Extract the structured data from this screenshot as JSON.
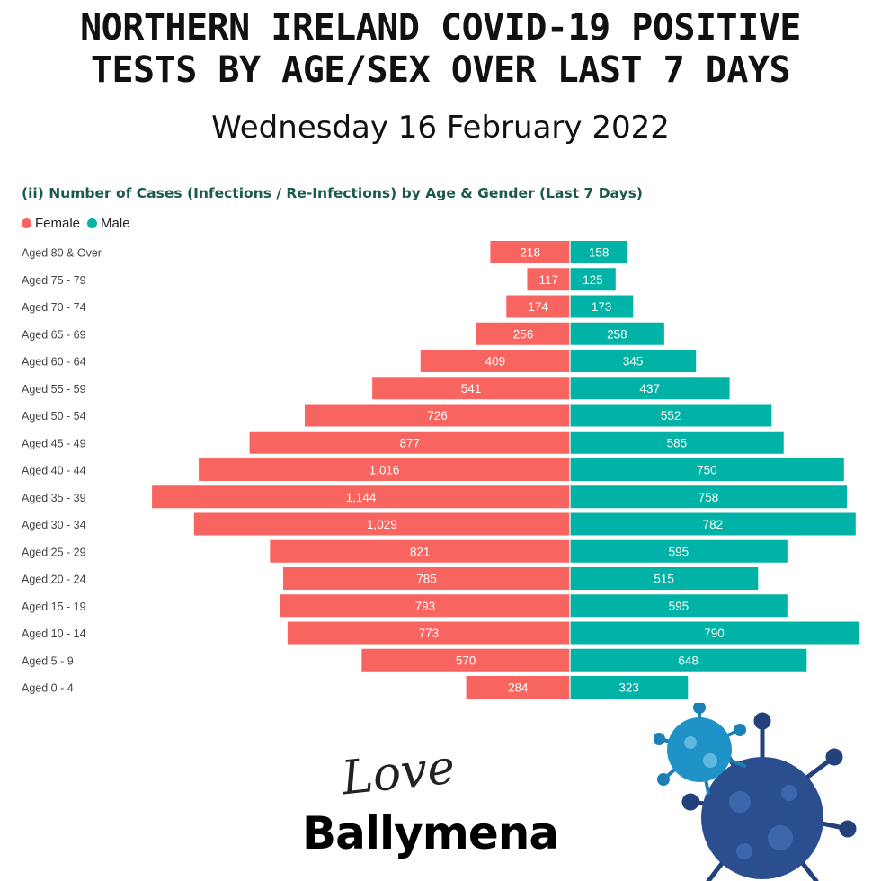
{
  "header": {
    "title": "NORTHERN IRELAND COVID-19 POSITIVE\nTESTS BY AGE/SEX OVER LAST 7 DAYS",
    "date": "Wednesday 16 February 2022"
  },
  "brand": {
    "script_word": "Love",
    "name": "Ballymena"
  },
  "colors": {
    "female": "#f8645f",
    "male": "#00b3a6"
  },
  "icons": [
    "virus-illustration"
  ],
  "chart_data": {
    "type": "bar",
    "orientation": "horizontal-diverging",
    "title": "(ii) Number of Cases (Infections / Re-Infections) by Age & Gender (Last 7 Days)",
    "legend_position": "top-left",
    "grid": false,
    "categories": [
      "Aged 80 & Over",
      "Aged 75 - 79",
      "Aged 70 - 74",
      "Aged 65 - 69",
      "Aged 60 - 64",
      "Aged 55 - 59",
      "Aged 50 - 54",
      "Aged 45 - 49",
      "Aged 40 - 44",
      "Aged 35 - 39",
      "Aged 30 - 34",
      "Aged 25 - 29",
      "Aged 20 - 24",
      "Aged 15 - 19",
      "Aged 10 - 14",
      "Aged 5 - 9",
      "Aged 0 - 4"
    ],
    "series": [
      {
        "name": "Female",
        "color": "#f8645f",
        "values": [
          218,
          117,
          174,
          256,
          409,
          541,
          726,
          877,
          1016,
          1144,
          1029,
          821,
          785,
          793,
          773,
          570,
          284
        ],
        "labels": [
          "218",
          "117",
          "174",
          "256",
          "409",
          "541",
          "726",
          "877",
          "1,016",
          "1,144",
          "1,029",
          "821",
          "785",
          "793",
          "773",
          "570",
          "284"
        ]
      },
      {
        "name": "Male",
        "color": "#00b3a6",
        "values": [
          158,
          125,
          173,
          258,
          345,
          437,
          552,
          585,
          750,
          758,
          782,
          595,
          515,
          595,
          790,
          648,
          323
        ],
        "labels": [
          "158",
          "125",
          "173",
          "258",
          "345",
          "437",
          "552",
          "585",
          "750",
          "758",
          "782",
          "595",
          "515",
          "595",
          "790",
          "648",
          "323"
        ]
      }
    ]
  }
}
